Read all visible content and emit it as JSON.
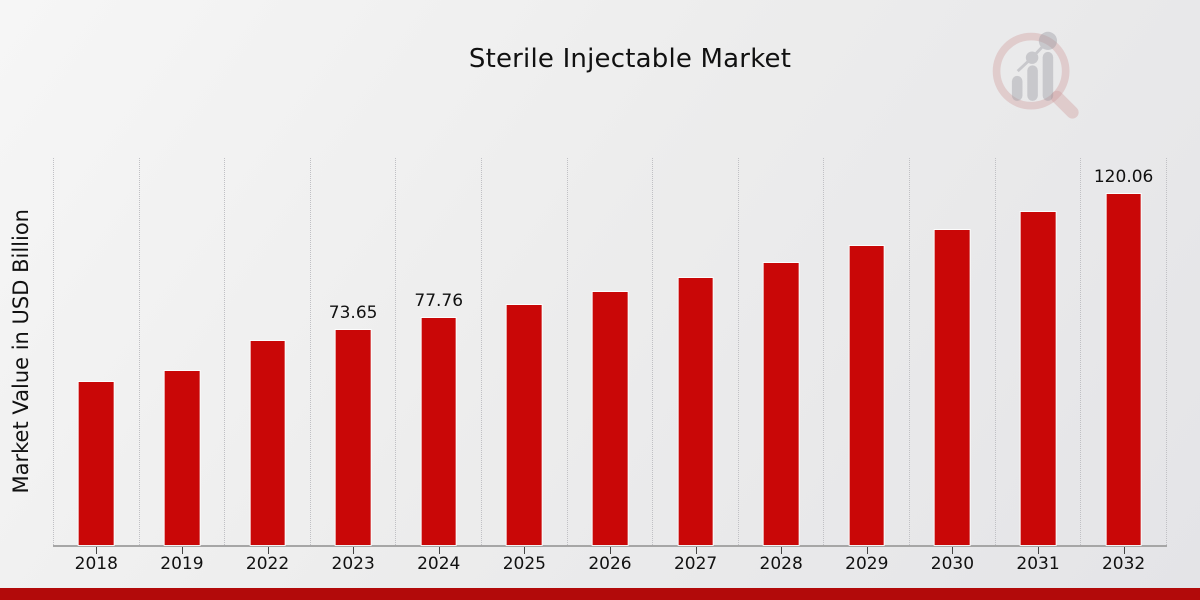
{
  "chart_data": {
    "type": "bar",
    "title": "Sterile Injectable Market",
    "xlabel": "",
    "ylabel": "Market Value in USD Billion",
    "categories": [
      "2018",
      "2019",
      "2022",
      "2023",
      "2024",
      "2025",
      "2026",
      "2027",
      "2028",
      "2029",
      "2030",
      "2031",
      "2032"
    ],
    "values": [
      55.7,
      59.4,
      69.8,
      73.65,
      77.76,
      82.1,
      86.5,
      91.3,
      96.6,
      102.2,
      107.6,
      113.8,
      120.06
    ],
    "value_labels": [
      "",
      "",
      "",
      "73.65",
      "77.76",
      "",
      "",
      "",
      "",
      "",
      "",
      "",
      "120.06"
    ],
    "ylim": [
      0,
      132.4
    ],
    "grid": "vertical-dotted",
    "legend": "none",
    "bar_color": "#c90707",
    "axis_color": "#a6a6a6",
    "grid_color": "#c0c0c4"
  },
  "footer": {
    "banner_color": "#b20a0a"
  },
  "icons": {
    "watermark": "magnifier-bar-chart-logo"
  }
}
